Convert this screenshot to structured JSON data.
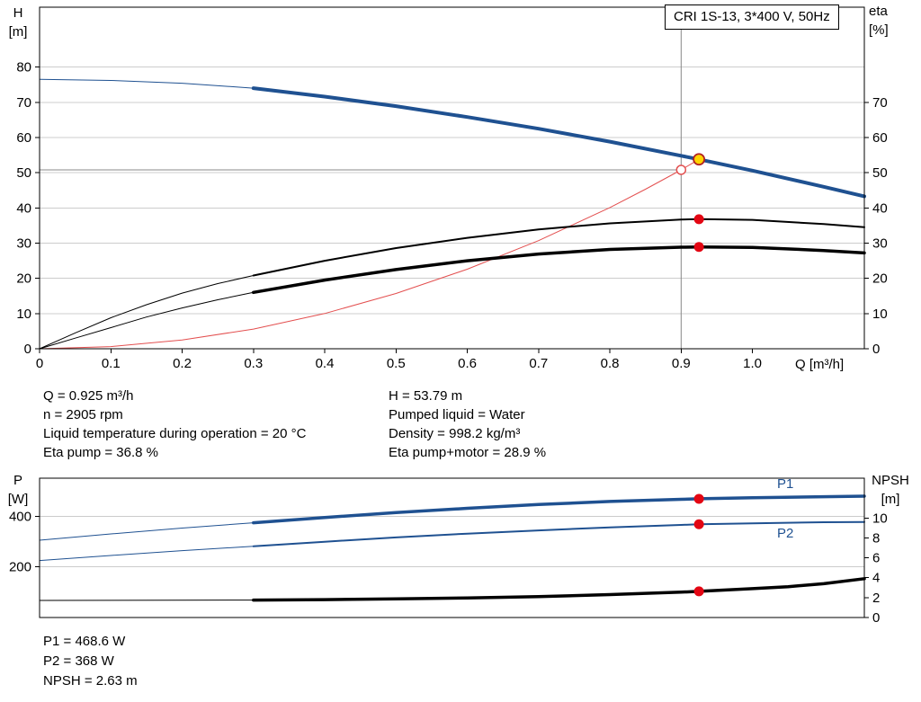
{
  "title_box": {
    "text": "CRI 1S-13, 3*400 V, 50Hz"
  },
  "axes_titles": {
    "top_left_1": "H",
    "top_left_2": "[m]",
    "top_right_1": "eta",
    "top_right_2": "[%]",
    "x": "Q [m³/h]",
    "bottom_left_1": "P",
    "bottom_left_2": "[W]",
    "bottom_right_1": "NPSH",
    "bottom_right_2": "[m]"
  },
  "labels": {
    "p1": "P1",
    "p2": "P2"
  },
  "info_block": {
    "left": [
      "Q = 0.925 m³/h",
      "n = 2905 rpm",
      "Liquid temperature during operation = 20 °C",
      "Eta pump = 36.8 %"
    ],
    "right": [
      "H = 53.79 m",
      "Pumped liquid = Water",
      "Density = 998.2 kg/m³",
      "Eta pump+motor = 28.9 %"
    ]
  },
  "result_block": [
    "P1 = 468.6 W",
    "P2 = 368 W",
    "NPSH = 2.63 m"
  ],
  "colors": {
    "blue": "#1f5191",
    "black": "#000000",
    "red_curve": "#e34f4f",
    "marker_red": "#e30613",
    "marker_yellow": "#ffd400",
    "marker_ring": "#b22222",
    "grid": "#cccccc",
    "crosshair": "#888888"
  },
  "chart_data": [
    {
      "type": "line",
      "title": "CRI 1S-13, 3*400 V, 50Hz",
      "x_axis": {
        "label": "Q [m³/h]",
        "range": [
          0,
          1.157
        ],
        "ticks": [
          "0",
          "0.1",
          "0.2",
          "0.3",
          "0.4",
          "0.5",
          "0.6",
          "0.7",
          "0.8",
          "0.9",
          "1.0"
        ],
        "show_labels": true
      },
      "y_left": {
        "label": "H [m]",
        "range": [
          0,
          97
        ],
        "ticks": [
          0,
          10,
          20,
          30,
          40,
          50,
          60,
          70,
          80
        ]
      },
      "y_right": {
        "label": "eta [%]",
        "range": [
          0,
          97
        ],
        "ticks": [
          0,
          10,
          20,
          30,
          40,
          50,
          60,
          70
        ]
      },
      "crosshair": {
        "x": 0.9,
        "y": 50.8
      },
      "series": [
        {
          "name": "H full-range curve",
          "axis": "left",
          "color": "blue",
          "width": 1,
          "points": [
            [
              0,
              76.5
            ],
            [
              0.1,
              76.2
            ],
            [
              0.2,
              75.4
            ],
            [
              0.3,
              74.0
            ]
          ]
        },
        {
          "name": "H operating curve",
          "axis": "left",
          "color": "blue",
          "width": 4,
          "points": [
            [
              0.3,
              74.0
            ],
            [
              0.4,
              71.6
            ],
            [
              0.5,
              68.9
            ],
            [
              0.6,
              65.8
            ],
            [
              0.7,
              62.5
            ],
            [
              0.8,
              58.8
            ],
            [
              0.9,
              54.8
            ],
            [
              0.925,
              53.79
            ],
            [
              1.0,
              50.6
            ],
            [
              1.1,
              46.0
            ],
            [
              1.157,
              43.3
            ]
          ]
        },
        {
          "name": "system curve",
          "axis": "left",
          "color": "red_curve",
          "width": 1,
          "points": [
            [
              0,
              0
            ],
            [
              0.1,
              0.6
            ],
            [
              0.2,
              2.5
            ],
            [
              0.3,
              5.6
            ],
            [
              0.4,
              10.0
            ],
            [
              0.5,
              15.7
            ],
            [
              0.6,
              22.6
            ],
            [
              0.7,
              30.7
            ],
            [
              0.8,
              40.1
            ],
            [
              0.85,
              45.3
            ],
            [
              0.9,
              50.8
            ],
            [
              0.925,
              53.79
            ]
          ]
        },
        {
          "name": "eta pump lead-in",
          "axis": "right",
          "color": "black",
          "width": 1,
          "points": [
            [
              0,
              0
            ],
            [
              0.05,
              4.5
            ],
            [
              0.1,
              8.8
            ],
            [
              0.15,
              12.5
            ],
            [
              0.2,
              15.8
            ],
            [
              0.25,
              18.5
            ],
            [
              0.3,
              20.8
            ]
          ]
        },
        {
          "name": "eta pump",
          "axis": "right",
          "color": "black",
          "width": 2,
          "points": [
            [
              0.3,
              20.8
            ],
            [
              0.4,
              25.0
            ],
            [
              0.5,
              28.6
            ],
            [
              0.6,
              31.5
            ],
            [
              0.7,
              33.9
            ],
            [
              0.8,
              35.6
            ],
            [
              0.9,
              36.7
            ],
            [
              0.925,
              36.8
            ],
            [
              1.0,
              36.6
            ],
            [
              1.1,
              35.4
            ],
            [
              1.157,
              34.5
            ]
          ]
        },
        {
          "name": "eta pump+motor lead-in",
          "axis": "right",
          "color": "black",
          "width": 1,
          "points": [
            [
              0,
              0
            ],
            [
              0.05,
              3.0
            ],
            [
              0.1,
              6.0
            ],
            [
              0.15,
              9.0
            ],
            [
              0.2,
              11.6
            ],
            [
              0.25,
              13.9
            ],
            [
              0.3,
              16.0
            ]
          ]
        },
        {
          "name": "eta pump+motor",
          "axis": "right",
          "color": "black",
          "width": 3.5,
          "points": [
            [
              0.3,
              16.0
            ],
            [
              0.4,
              19.5
            ],
            [
              0.5,
              22.5
            ],
            [
              0.6,
              25.0
            ],
            [
              0.7,
              26.9
            ],
            [
              0.8,
              28.2
            ],
            [
              0.9,
              28.85
            ],
            [
              0.925,
              28.9
            ],
            [
              1.0,
              28.8
            ],
            [
              1.1,
              27.9
            ],
            [
              1.157,
              27.2
            ]
          ]
        }
      ],
      "markers": [
        {
          "shape": "open-circle",
          "axis": "left",
          "x": 0.9,
          "y": 50.8,
          "r": 5,
          "stroke": "red_curve"
        },
        {
          "shape": "dot",
          "axis": "left",
          "x": 0.925,
          "y": 53.79,
          "r": 6,
          "fill": "marker_yellow",
          "stroke": "marker_ring"
        },
        {
          "shape": "dot",
          "axis": "right",
          "x": 0.925,
          "y": 36.8,
          "r": 5.5,
          "fill": "marker_red"
        },
        {
          "shape": "dot",
          "axis": "right",
          "x": 0.925,
          "y": 28.9,
          "r": 5.5,
          "fill": "marker_red"
        }
      ]
    },
    {
      "type": "line",
      "x_axis": {
        "label": "",
        "range": [
          0,
          1.157
        ],
        "ticks": [],
        "show_labels": false
      },
      "y_left": {
        "label": "P [W]",
        "range": [
          0,
          550
        ],
        "ticks": [
          200,
          400
        ]
      },
      "y_right": {
        "label": "NPSH [m]",
        "range": [
          0,
          14
        ],
        "ticks": [
          0,
          2,
          4,
          6,
          8,
          10
        ]
      },
      "series": [
        {
          "name": "P1 lead-in",
          "axis": "left",
          "color": "blue",
          "width": 1,
          "points": [
            [
              0,
              305
            ],
            [
              0.1,
              330
            ],
            [
              0.2,
              353
            ],
            [
              0.3,
              374
            ]
          ]
        },
        {
          "name": "P1",
          "axis": "left",
          "color": "blue",
          "width": 3.5,
          "points": [
            [
              0.3,
              374
            ],
            [
              0.4,
              395
            ],
            [
              0.5,
              414
            ],
            [
              0.6,
              431
            ],
            [
              0.7,
              446
            ],
            [
              0.8,
              458
            ],
            [
              0.9,
              466.5
            ],
            [
              0.925,
              468.6
            ],
            [
              1.0,
              473
            ],
            [
              1.1,
              477
            ],
            [
              1.157,
              479
            ]
          ]
        },
        {
          "name": "P2 lead-in",
          "axis": "left",
          "color": "blue",
          "width": 1,
          "points": [
            [
              0,
              225
            ],
            [
              0.1,
              245
            ],
            [
              0.2,
              264
            ],
            [
              0.3,
              281
            ]
          ]
        },
        {
          "name": "P2",
          "axis": "left",
          "color": "blue",
          "width": 2,
          "points": [
            [
              0.3,
              281
            ],
            [
              0.4,
              299
            ],
            [
              0.5,
              316
            ],
            [
              0.6,
              331
            ],
            [
              0.7,
              344
            ],
            [
              0.8,
              356
            ],
            [
              0.9,
              365.5
            ],
            [
              0.925,
              368
            ],
            [
              1.0,
              372
            ],
            [
              1.1,
              376
            ],
            [
              1.157,
              377
            ]
          ]
        },
        {
          "name": "NPSH lead-in",
          "axis": "right",
          "color": "black",
          "width": 1,
          "points": [
            [
              0,
              1.72
            ],
            [
              0.3,
              1.75
            ]
          ]
        },
        {
          "name": "NPSH",
          "axis": "right",
          "color": "black",
          "width": 3.5,
          "points": [
            [
              0.3,
              1.75
            ],
            [
              0.4,
              1.8
            ],
            [
              0.5,
              1.87
            ],
            [
              0.6,
              1.97
            ],
            [
              0.7,
              2.1
            ],
            [
              0.8,
              2.3
            ],
            [
              0.9,
              2.55
            ],
            [
              0.925,
              2.63
            ],
            [
              1.0,
              2.9
            ],
            [
              1.05,
              3.1
            ],
            [
              1.1,
              3.4
            ],
            [
              1.157,
              3.9
            ]
          ]
        }
      ],
      "markers": [
        {
          "shape": "dot",
          "axis": "left",
          "x": 0.925,
          "y": 468.6,
          "r": 5.5,
          "fill": "marker_red"
        },
        {
          "shape": "dot",
          "axis": "left",
          "x": 0.925,
          "y": 368,
          "r": 5.5,
          "fill": "marker_red"
        },
        {
          "shape": "dot",
          "axis": "right",
          "x": 0.925,
          "y": 2.63,
          "r": 5.5,
          "fill": "marker_red"
        }
      ]
    }
  ]
}
